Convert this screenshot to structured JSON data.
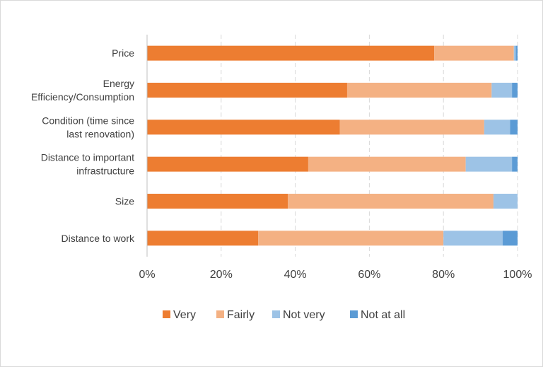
{
  "chart_data": {
    "type": "bar",
    "orientation": "horizontal",
    "stacked": true,
    "percent_stacked": true,
    "title": "",
    "xlabel": "",
    "ylabel": "",
    "categories": [
      "Price",
      "Energy Efficiency/Consumption",
      "Condition (time since last renovation)",
      "Distance to important infrastructure",
      "Size",
      "Distance to work"
    ],
    "category_lines": [
      [
        "Price"
      ],
      [
        "Energy",
        "Efficiency/Consumption"
      ],
      [
        "Condition (time since",
        "last renovation)"
      ],
      [
        "Distance to important",
        "infrastructure"
      ],
      [
        "Size"
      ],
      [
        "Distance to work"
      ]
    ],
    "series": [
      {
        "name": "Very",
        "color": "#ED7D31",
        "values": [
          77.5,
          54,
          52,
          43.5,
          38,
          30
        ]
      },
      {
        "name": "Fairly",
        "color": "#F4B183",
        "values": [
          21.5,
          39,
          39,
          42.5,
          55.5,
          50
        ]
      },
      {
        "name": "Not very",
        "color": "#9DC3E6",
        "values": [
          0.5,
          5.5,
          7,
          12.5,
          6.5,
          16
        ]
      },
      {
        "name": "Not at all",
        "color": "#5B9BD5",
        "values": [
          0.5,
          1.5,
          2,
          1.5,
          0,
          4
        ]
      }
    ],
    "xlim": [
      0,
      100
    ],
    "x_ticks": [
      "0%",
      "20%",
      "40%",
      "60%",
      "80%",
      "100%"
    ],
    "grid": "vertical-dashed",
    "legend_position": "bottom"
  }
}
